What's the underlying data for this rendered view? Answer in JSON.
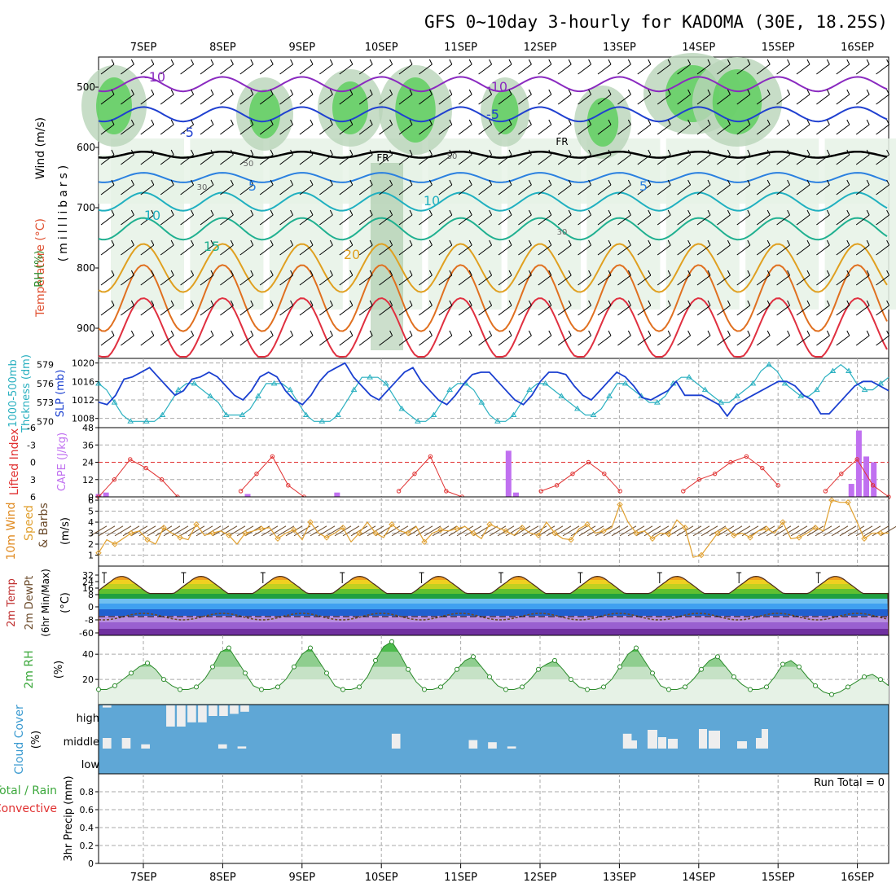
{
  "title": "GFS 0~10day 3-hourly for KADOMA (30E, 18.25S)",
  "dates": [
    "7SEP",
    "8SEP",
    "9SEP",
    "10SEP",
    "11SEP",
    "12SEP",
    "13SEP",
    "14SEP",
    "15SEP",
    "16SEP"
  ],
  "colors": {
    "frame": "#000000",
    "grid": "#aaaaaa",
    "rh_light": "#e6f2e6",
    "rh_mid": "#b9d5b9",
    "rh_dark": "#8fb88f",
    "rh_green": "#5fcf5f",
    "slp": "#1a3fd0",
    "thickness": "#2ab0c0",
    "lifted_index": "#e03030",
    "cape": "#c070f0",
    "wind_speed": "#e0a030",
    "barb": "#6b4a2a",
    "rh2m": "#3ca83c",
    "cloud_bg": "#5fa7d6",
    "cloud_bar": "#eeeeee"
  },
  "panels": {
    "upper": {
      "ylabel_parts": [
        "RH (%)",
        "Temperature (°C)",
        "Wind (m/s)"
      ],
      "ylabel2": "(milllibars)",
      "ticks": [
        "500",
        "600",
        "700",
        "800",
        "900"
      ],
      "isotherm_labels": [
        "-10",
        "-10",
        "-5",
        "-5",
        "5",
        "5",
        "10",
        "10",
        "15",
        "20"
      ],
      "freezing_label": "FR",
      "rh_labels": [
        "30",
        "50",
        "30",
        "50"
      ]
    },
    "slp": {
      "label_left1": "1000-500mb",
      "label_left2": "Thckness (dm)",
      "label_right": "SLP (mb)",
      "left_ticks": [
        "579",
        "576",
        "573",
        "570"
      ],
      "right_ticks": [
        "1020",
        "1016",
        "1012",
        "1008"
      ]
    },
    "cape": {
      "label_left": "Lifted Index",
      "label_right": "CAPE (J/kg)",
      "left_ticks": [
        "-6",
        "-3",
        "0",
        "3",
        "6"
      ],
      "right_ticks": [
        "48",
        "36",
        "24",
        "12",
        "0"
      ]
    },
    "wind10": {
      "label_left": "10m Wind",
      "label_mid": "Speed",
      "label_right": "& Barbs",
      "unit": "(m/s)",
      "ticks": [
        "6",
        "5",
        "4",
        "3",
        "2",
        "1"
      ]
    },
    "temp2m": {
      "label1": "2m Temp",
      "label2": "2m DewPt",
      "label3": "(6hr Min/Max)",
      "unit": "(°C)",
      "ticks": [
        "32",
        "24",
        "16",
        "8",
        "0",
        "-8",
        "-60"
      ]
    },
    "rh2m": {
      "label": "2m RH",
      "unit": "(%)",
      "ticks": [
        "40",
        "20"
      ]
    },
    "cloud": {
      "label": "Cloud Cover",
      "unit": "(%)",
      "levels": [
        "high",
        "middle",
        "low"
      ]
    },
    "precip": {
      "label_total": "Total / Rain",
      "label_conv": "Convective",
      "label_axis": "3hr Precip (mm)",
      "run_total": "Run Total = 0",
      "ticks": [
        "0.8",
        "0.6",
        "0.4",
        "0.2",
        "0"
      ]
    }
  },
  "chart_data": {
    "type": "line",
    "x_dates": [
      "7SEP",
      "8SEP",
      "9SEP",
      "10SEP",
      "11SEP",
      "12SEP",
      "13SEP",
      "14SEP",
      "15SEP",
      "16SEP"
    ],
    "slp_mb": [
      1011.5,
      1011,
      1013,
      1016.5,
      1017,
      1018,
      1019,
      1017,
      1015,
      1013,
      1014,
      1016.5,
      1017,
      1018,
      1017,
      1015,
      1013,
      1012,
      1014,
      1017,
      1018,
      1017,
      1014,
      1012,
      1011,
      1013,
      1016,
      1018,
      1019,
      1020,
      1017,
      1015,
      1013,
      1012,
      1014,
      1016,
      1018,
      1019,
      1016,
      1014,
      1012,
      1011,
      1013,
      1015.5,
      1017.5,
      1018,
      1018,
      1016,
      1014,
      1012,
      1011,
      1013,
      1016,
      1018,
      1018,
      1017.5,
      1015,
      1013,
      1012,
      1014,
      1016,
      1018,
      1017,
      1015,
      1012.5,
      1012,
      1013,
      1014,
      1016,
      1013,
      1013,
      1013,
      1012,
      1011,
      1008.5,
      1011,
      1012,
      1013,
      1014,
      1015,
      1016,
      1016,
      1015,
      1013,
      1012,
      1009,
      1009,
      1011,
      1013,
      1015,
      1016,
      1016,
      1015,
      1014
    ],
    "thickness_dm": [
      576,
      575,
      573,
      571,
      570,
      570,
      570,
      570,
      571,
      573,
      575,
      576,
      576,
      575,
      574,
      573,
      571,
      571,
      571,
      572,
      574,
      576,
      576,
      576,
      575,
      573,
      571,
      570,
      570,
      570,
      571,
      573,
      575,
      577,
      577,
      577,
      576,
      574,
      572,
      571,
      570,
      570,
      571,
      573,
      575,
      576,
      576,
      575,
      573,
      571,
      570,
      570,
      571,
      573,
      575,
      576,
      576,
      575,
      574,
      573,
      572,
      571,
      571,
      572,
      574,
      576,
      576,
      575,
      574,
      573,
      573,
      574,
      576,
      577,
      577,
      576,
      575,
      574,
      573,
      573,
      574,
      575,
      576,
      578,
      579,
      578,
      576,
      575,
      574,
      574,
      575,
      577,
      578,
      579,
      578,
      576,
      575,
      575,
      576,
      577
    ],
    "lifted_index": [
      6,
      3,
      -0.5,
      1,
      3,
      6,
      null,
      null,
      null,
      5,
      2,
      -1,
      4,
      6,
      null,
      null,
      null,
      null,
      null,
      5,
      2,
      -1,
      5,
      6,
      null,
      null,
      null,
      null,
      5,
      4,
      2,
      0,
      2,
      5,
      null,
      null,
      null,
      5,
      3,
      2,
      0,
      -1,
      1,
      4,
      null,
      null,
      5,
      2,
      -0.5,
      4,
      6
    ],
    "cape_jkg": [
      2,
      3,
      0,
      0,
      0,
      0,
      0,
      0,
      0,
      0,
      0,
      0,
      0,
      0,
      0,
      0,
      0,
      0,
      0,
      0,
      2,
      0,
      0,
      0,
      0,
      0,
      0,
      0,
      0,
      0,
      0,
      0,
      3,
      0,
      0,
      0,
      0,
      0,
      0,
      0,
      0,
      0,
      0,
      0,
      0,
      0,
      0,
      0,
      0,
      0,
      0,
      0,
      0,
      0,
      0,
      32,
      3,
      0,
      0,
      0,
      0,
      0,
      0,
      0,
      0,
      0,
      0,
      0,
      0,
      0,
      0,
      0,
      0,
      0,
      0,
      0,
      0,
      0,
      0,
      0,
      0,
      0,
      0,
      0,
      0,
      0,
      0,
      0,
      0,
      0,
      0,
      0,
      0,
      0,
      0,
      0,
      0,
      0,
      0,
      0,
      0,
      9,
      46,
      28,
      24,
      0,
      0
    ],
    "wind10_ms": [
      1.2,
      2.4,
      2.0,
      2.5,
      3.0,
      3.2,
      2.4,
      2.0,
      3.5,
      3.0,
      2.6,
      2.4,
      3.8,
      2.8,
      3.0,
      3.2,
      2.8,
      2.0,
      3.0,
      3.2,
      3.4,
      3.5,
      2.5,
      3.0,
      3.3,
      2.4,
      4.0,
      3.0,
      2.6,
      3.0,
      3.5,
      2.2,
      3.0,
      4.0,
      3.0,
      2.6,
      3.8,
      3.2,
      3.0,
      3.6,
      2.2,
      3.0,
      3.3,
      3.2,
      3.4,
      3.6,
      3.0,
      2.5,
      3.8,
      3.5,
      3.2,
      2.8,
      3.5,
      3.0,
      2.8,
      4.0,
      3.0,
      2.5,
      2.4,
      3.4,
      3.8,
      3.0,
      3.2,
      3.5,
      5.6,
      4.0,
      3.0,
      3.2,
      2.5,
      3.0,
      2.9,
      4.2,
      3.5,
      0.8,
      1.0,
      2.0,
      3.0,
      3.5,
      2.8,
      3.0,
      2.6,
      3.2,
      3.4,
      3.0,
      4.0,
      2.5,
      2.6,
      3.0,
      3.5,
      3.2,
      6.0,
      5.8,
      5.8,
      4.2,
      2.5,
      3.0,
      3.0,
      3.0
    ],
    "temp2m_max": [
      30,
      30,
      31,
      32,
      32,
      31,
      31,
      31,
      32,
      33,
      33
    ],
    "temp2m_min": [
      20,
      19,
      19,
      19,
      19,
      19,
      19,
      19,
      19,
      19,
      20
    ],
    "rh2m_pct": [
      12,
      12,
      15,
      20,
      25,
      30,
      33,
      28,
      20,
      15,
      12,
      12,
      14,
      20,
      30,
      42,
      45,
      35,
      25,
      15,
      12,
      12,
      14,
      20,
      30,
      40,
      45,
      35,
      25,
      15,
      12,
      12,
      14,
      22,
      35,
      46,
      50,
      40,
      28,
      18,
      12,
      12,
      14,
      20,
      28,
      35,
      38,
      30,
      22,
      15,
      12,
      12,
      14,
      20,
      28,
      32,
      35,
      28,
      20,
      14,
      12,
      12,
      14,
      20,
      30,
      40,
      45,
      35,
      25,
      15,
      12,
      12,
      14,
      20,
      28,
      35,
      38,
      30,
      22,
      16,
      12,
      12,
      14,
      22,
      32,
      35,
      30,
      22,
      15,
      10,
      8,
      10,
      14,
      18,
      22,
      24,
      20,
      15
    ],
    "cloud_high_pct": [
      0.1,
      0,
      0,
      0,
      0,
      0,
      1,
      1,
      0.8,
      0.8,
      0.5,
      0.5,
      0.4,
      0.3,
      0,
      0,
      0,
      0,
      0,
      0,
      0,
      0,
      0,
      0,
      0,
      0,
      0,
      0,
      0,
      0,
      0,
      0,
      0,
      0,
      0,
      0,
      0,
      0,
      0,
      0,
      0
    ],
    "cloud_mid_pct": [
      0.5,
      0.5,
      0.2,
      0,
      0,
      0,
      0.2,
      0.1,
      0,
      0,
      0,
      0,
      0,
      0,
      0,
      0.7,
      0,
      0,
      0,
      0.4,
      0.3,
      0.1,
      0,
      0,
      0,
      0,
      0,
      0.7,
      0,
      0,
      0,
      0,
      0,
      0,
      0,
      0,
      0,
      0,
      0,
      0,
      0
    ],
    "precip_mm": [
      0,
      0,
      0,
      0,
      0,
      0,
      0,
      0,
      0,
      0
    ],
    "axes": {
      "pressure_mb": [
        450,
        950
      ],
      "slp_mb": [
        1006,
        1021
      ],
      "thickness_dm": [
        569,
        580
      ],
      "lifted_index": [
        -6,
        6
      ],
      "cape_jkg": [
        0,
        48
      ],
      "wind10_ms": [
        0,
        6.3
      ],
      "rh2m_pct": [
        0,
        55
      ],
      "precip_mm": [
        0,
        1
      ]
    }
  }
}
